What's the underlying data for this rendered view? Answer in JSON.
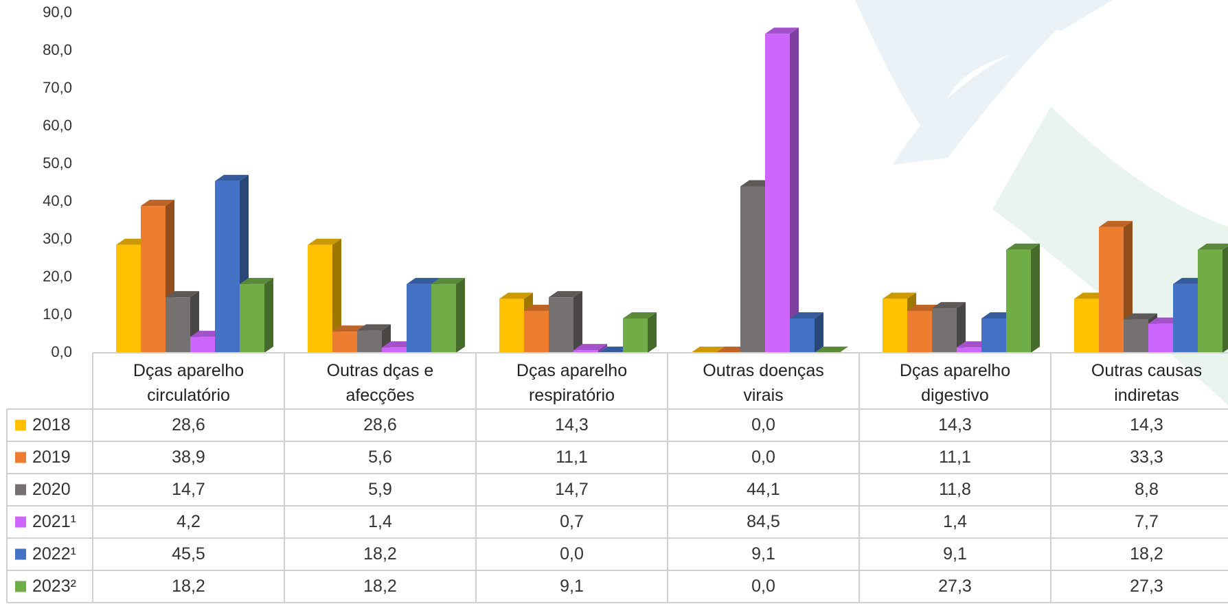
{
  "chart_data": {
    "type": "bar3d",
    "categories": [
      "Dças aparelho circulatório",
      "Outras dças e afecções",
      "Dças aparelho respiratório",
      "Outras doenças virais",
      "Dças aparelho digestivo",
      "Outras causas indiretas"
    ],
    "series": [
      {
        "name": "2018",
        "color": "#ffc000",
        "values": [
          28.6,
          28.6,
          14.3,
          0.0,
          14.3,
          14.3
        ],
        "value_labels": [
          "28,6",
          "28,6",
          "14,3",
          "0,0",
          "14,3",
          "14,3"
        ]
      },
      {
        "name": "2019",
        "color": "#ed7d31",
        "values": [
          38.9,
          5.6,
          11.1,
          0.0,
          11.1,
          33.3
        ],
        "value_labels": [
          "38,9",
          "5,6",
          "11,1",
          "0,0",
          "11,1",
          "33,3"
        ]
      },
      {
        "name": "2020",
        "color": "#767171",
        "values": [
          14.7,
          5.9,
          14.7,
          44.1,
          11.8,
          8.8
        ],
        "value_labels": [
          "14,7",
          "5,9",
          "14,7",
          "44,1",
          "11,8",
          "8,8"
        ]
      },
      {
        "name": "2021¹",
        "color": "#cc66ff",
        "values": [
          4.2,
          1.4,
          0.7,
          84.5,
          1.4,
          7.7
        ],
        "value_labels": [
          "4,2",
          "1,4",
          "0,7",
          "84,5",
          "1,4",
          "7,7"
        ]
      },
      {
        "name": "2022¹",
        "color": "#4472c4",
        "values": [
          45.5,
          18.2,
          0.0,
          9.1,
          9.1,
          18.2
        ],
        "value_labels": [
          "45,5",
          "18,2",
          "0,0",
          "9,1",
          "9,1",
          "18,2"
        ]
      },
      {
        "name": "2023²",
        "color": "#70ad47",
        "values": [
          18.2,
          18.2,
          9.1,
          0.0,
          27.3,
          27.3
        ],
        "value_labels": [
          "18,2",
          "18,2",
          "9,1",
          "0,0",
          "27,3",
          "27,3"
        ]
      }
    ],
    "ylim": [
      0,
      90
    ],
    "yticks": [
      {
        "value": 0,
        "label": "0,0"
      },
      {
        "value": 10,
        "label": "10,0"
      },
      {
        "value": 20,
        "label": "20,0"
      },
      {
        "value": 30,
        "label": "30,0"
      },
      {
        "value": 40,
        "label": "40,0"
      },
      {
        "value": 50,
        "label": "50,0"
      },
      {
        "value": 60,
        "label": "60,0"
      },
      {
        "value": 70,
        "label": "70,0"
      },
      {
        "value": 80,
        "label": "80,0"
      },
      {
        "value": 90,
        "label": "90,0"
      }
    ],
    "grid": false
  }
}
